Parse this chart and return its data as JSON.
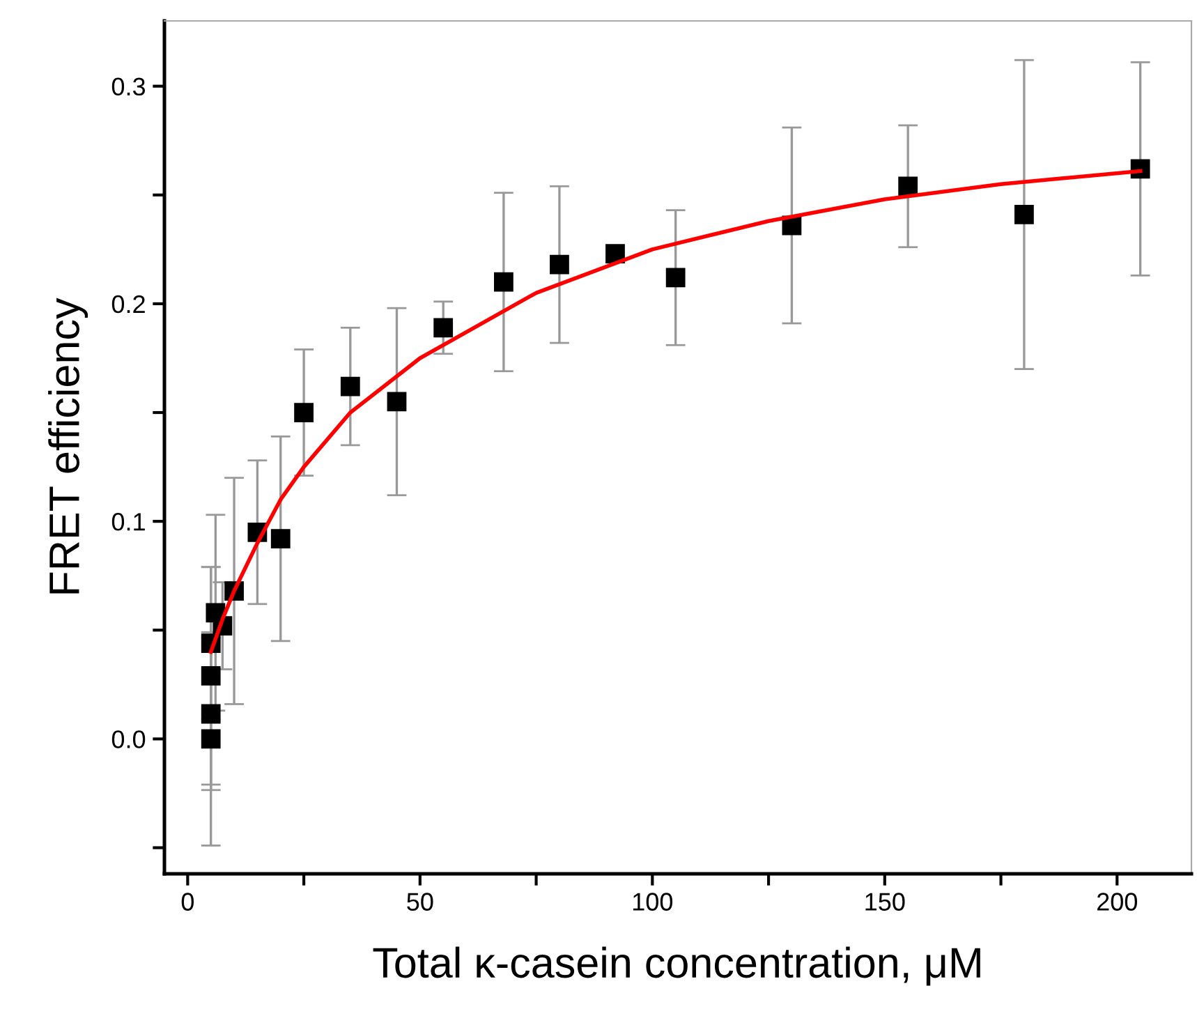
{
  "chart_data": {
    "type": "scatter",
    "xlabel": "Total κ-casein concentration, μM",
    "ylabel": "FRET efficiency",
    "xlim": [
      -5,
      216
    ],
    "ylim": [
      -0.062,
      0.33
    ],
    "xticks": [
      0,
      {
        "value": 25,
        "label": null
      },
      50,
      {
        "value": 75,
        "label": null
      },
      100,
      {
        "value": 125,
        "label": null
      },
      150,
      {
        "value": 175,
        "label": null
      },
      200
    ],
    "yticks": [
      {
        "value": -0.05,
        "label": null
      },
      {
        "value": 0,
        "label": "0.0"
      },
      {
        "value": 0.05,
        "label": null
      },
      0.1,
      {
        "value": 0.15,
        "label": null
      },
      0.2,
      {
        "value": 0.25,
        "label": null
      },
      0.3
    ],
    "grid": false,
    "legend": false,
    "series": [
      {
        "color": "#000000",
        "marker": "square",
        "x": [
          5,
          5,
          5,
          5,
          6,
          7.5,
          10,
          15,
          20,
          25,
          35,
          45,
          55,
          68,
          80,
          92,
          105,
          130,
          155,
          180,
          205
        ],
        "values": [
          0.0,
          0.0115,
          0.029,
          0.044,
          0.058,
          0.052,
          0.068,
          0.095,
          0.092,
          0.15,
          0.162,
          0.155,
          0.189,
          0.21,
          0.218,
          0.223,
          0.212,
          0.236,
          0.254,
          0.241,
          0.262
        ],
        "errors": [
          0.049,
          0.035,
          0.05,
          0.035,
          0.045,
          0.02,
          0.052,
          0.033,
          0.047,
          0.029,
          0.027,
          0.043,
          0.012,
          0.041,
          0.036,
          null,
          0.031,
          0.045,
          0.028,
          0.071,
          0.049
        ]
      },
      {
        "type": "line",
        "color": "#ff0000",
        "marker": "none",
        "line_style": "solid",
        "x": [
          5,
          7.5,
          10,
          15,
          20,
          25,
          35,
          50,
          75,
          100,
          125,
          150,
          175,
          205
        ],
        "values": [
          0.04,
          0.055,
          0.068,
          0.09,
          0.11,
          0.125,
          0.15,
          0.175,
          0.205,
          0.225,
          0.238,
          0.248,
          0.255,
          0.261
        ]
      }
    ]
  }
}
